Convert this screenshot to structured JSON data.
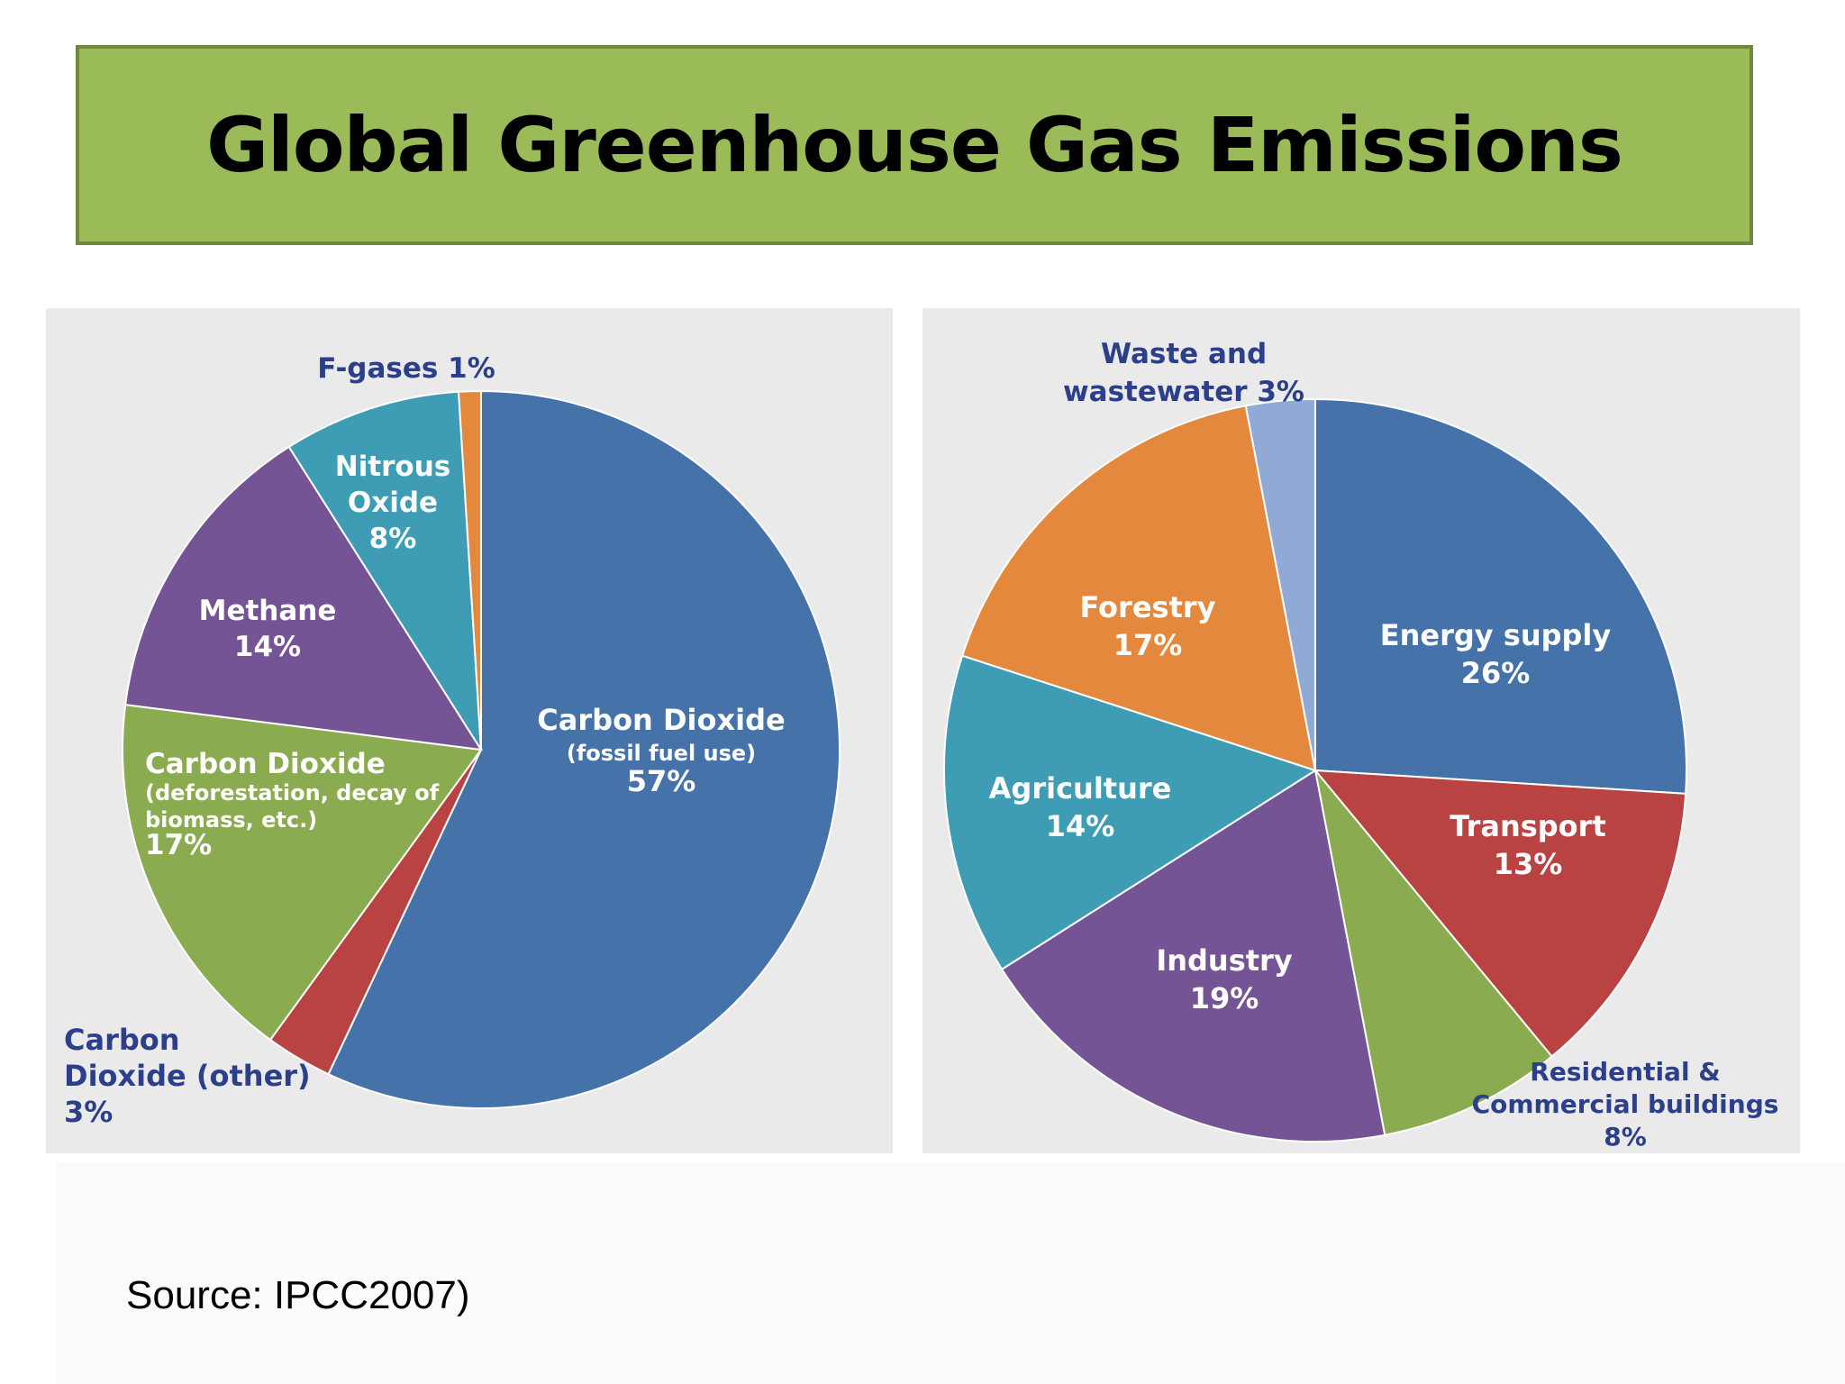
{
  "title": "Global Greenhouse Gas Emissions",
  "source": "Source: IPCC2007)",
  "chart_data": [
    {
      "type": "pie",
      "slices": [
        {
          "label": [
            "Carbon Dioxide",
            "(fossil fuel use)",
            "57%"
          ],
          "value": 57,
          "color": "#4472a9"
        },
        {
          "label": [
            "Carbon",
            "Dioxide (other)",
            "3%"
          ],
          "value": 3,
          "color": "#b94343"
        },
        {
          "label": [
            "Carbon Dioxide",
            "(deforestation, decay of",
            "biomass, etc.)",
            "17%"
          ],
          "value": 17,
          "color": "#8aab4f"
        },
        {
          "label": [
            "Methane",
            "14%"
          ],
          "value": 14,
          "color": "#745495"
        },
        {
          "label": [
            "Nitrous",
            "Oxide",
            "8%"
          ],
          "value": 8,
          "color": "#3e9cb5"
        },
        {
          "label": [
            "F-gases 1%"
          ],
          "value": 1,
          "color": "#e4883d"
        }
      ]
    },
    {
      "type": "pie",
      "slices": [
        {
          "label": [
            "Energy supply",
            "26%"
          ],
          "value": 26,
          "color": "#4472a9"
        },
        {
          "label": [
            "Transport",
            "13%"
          ],
          "value": 13,
          "color": "#b94343"
        },
        {
          "label": [
            "Residential &",
            "Commercial buildings",
            "8%"
          ],
          "value": 8,
          "color": "#8aab4f"
        },
        {
          "label": [
            "Industry",
            "19%"
          ],
          "value": 19,
          "color": "#745495"
        },
        {
          "label": [
            "Agriculture",
            "14%"
          ],
          "value": 14,
          "color": "#3e9cb5"
        },
        {
          "label": [
            "Forestry",
            "17%"
          ],
          "value": 17,
          "color": "#e4883d"
        },
        {
          "label": [
            "Waste and",
            "wastewater 3%"
          ],
          "value": 3,
          "color": "#91a9d5"
        }
      ]
    }
  ]
}
